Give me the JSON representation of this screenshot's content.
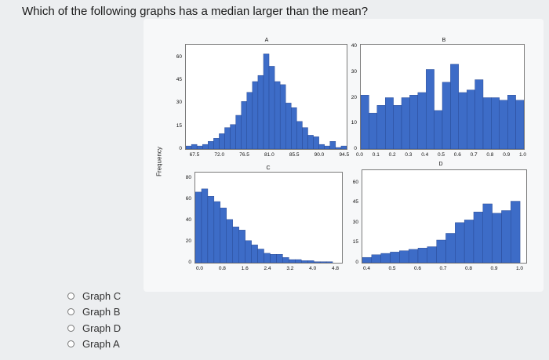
{
  "question": "Which of the following graphs has a median larger than the mean?",
  "options": [
    "Graph C",
    "Graph B",
    "Graph D",
    "Graph A"
  ],
  "ylabel": "Frequency",
  "colors": {
    "bar": "#3d6cc7",
    "bar_edge": "#22418a",
    "panel_border": "#7a7a7a"
  },
  "chart_data": [
    {
      "type": "bar",
      "title": "A",
      "x": [
        66.5,
        67.5,
        68.5,
        69.5,
        70.5,
        71.5,
        72.5,
        73.5,
        74.5,
        75.5,
        76.5,
        77.5,
        78.5,
        79.5,
        80.5,
        81.5,
        82.5,
        83.5,
        84.5,
        85.5,
        86.5,
        87.5,
        88.5,
        89.5,
        90.5,
        91.5,
        92.5,
        93.5,
        94.5
      ],
      "values": [
        2,
        3,
        2,
        3,
        5,
        7,
        10,
        14,
        16,
        22,
        31,
        37,
        44,
        48,
        62,
        54,
        44,
        42,
        30,
        27,
        18,
        14,
        9,
        8,
        3,
        2,
        5,
        1,
        2
      ],
      "xticks": [
        "67.5",
        "72.0",
        "76.5",
        "81.0",
        "85.5",
        "90.0",
        "94.5"
      ],
      "yticks": [
        "0",
        "15",
        "30",
        "45",
        "60"
      ],
      "ylim": [
        0,
        67
      ]
    },
    {
      "type": "bar",
      "title": "B",
      "x": [
        0.025,
        0.075,
        0.125,
        0.175,
        0.225,
        0.275,
        0.325,
        0.375,
        0.425,
        0.475,
        0.525,
        0.575,
        0.625,
        0.675,
        0.725,
        0.775,
        0.825,
        0.875,
        0.925,
        0.975
      ],
      "values": [
        21,
        14,
        17,
        20,
        17,
        20,
        21,
        22,
        31,
        15,
        26,
        33,
        22,
        23,
        27,
        20,
        20,
        19,
        21,
        19
      ],
      "xticks": [
        "0.0",
        "0.1",
        "0.2",
        "0.3",
        "0.4",
        "0.5",
        "0.6",
        "0.7",
        "0.8",
        "0.9",
        "1.0"
      ],
      "yticks": [
        "0",
        "10",
        "20",
        "30",
        "40"
      ],
      "ylim": [
        0,
        40
      ]
    },
    {
      "type": "bar",
      "title": "C",
      "x": [
        0.2,
        0.4,
        0.6,
        0.8,
        1.0,
        1.2,
        1.4,
        1.6,
        1.8,
        2.0,
        2.2,
        2.4,
        2.6,
        2.8,
        3.0,
        3.2,
        3.4,
        3.6,
        3.8,
        4.0,
        4.2,
        4.4
      ],
      "values": [
        67,
        70,
        63,
        58,
        52,
        41,
        34,
        31,
        21,
        17,
        13,
        9,
        8,
        8,
        5,
        3,
        3,
        2,
        2,
        1,
        1,
        1
      ],
      "xticks": [
        "0.0",
        "0.8",
        "1.6",
        "2.4",
        "3.2",
        "4.0",
        "4.8"
      ],
      "yticks": [
        "0",
        "20",
        "40",
        "60",
        "80"
      ],
      "ylim": [
        0,
        84
      ]
    },
    {
      "type": "bar",
      "title": "D",
      "x": [
        0.485,
        0.515,
        0.545,
        0.575,
        0.605,
        0.635,
        0.665,
        0.695,
        0.725,
        0.755,
        0.785,
        0.815,
        0.845,
        0.875,
        0.905,
        0.935,
        0.965
      ],
      "values": [
        4,
        6,
        7,
        8,
        9,
        10,
        11,
        12,
        17,
        22,
        30,
        32,
        38,
        44,
        37,
        39,
        46
      ],
      "xticks": [
        "0.4",
        "0.5",
        "0.6",
        "0.7",
        "0.8",
        "0.9",
        "1.0"
      ],
      "yticks": [
        "0",
        "15",
        "30",
        "45",
        "60"
      ],
      "ylim": [
        0,
        68
      ]
    }
  ]
}
